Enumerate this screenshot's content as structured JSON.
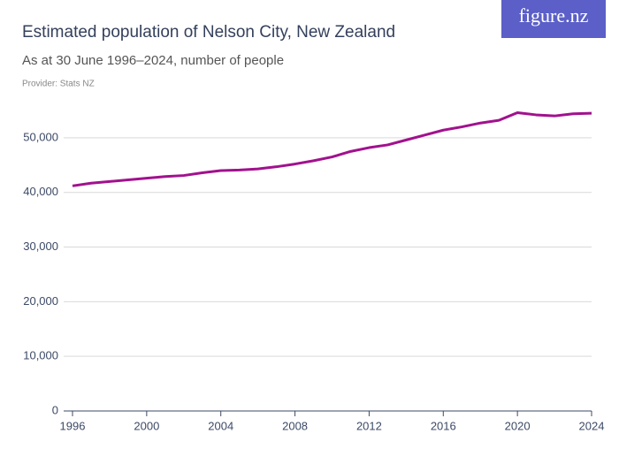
{
  "brand": "figure.nz",
  "chart_data": {
    "type": "line",
    "title": "Estimated population of Nelson City, New Zealand",
    "subtitle": "As at 30 June 1996–2024, number of people",
    "source": "Provider: Stats NZ",
    "x": [
      1996,
      1997,
      1998,
      1999,
      2000,
      2001,
      2002,
      2003,
      2004,
      2005,
      2006,
      2007,
      2008,
      2009,
      2010,
      2011,
      2012,
      2013,
      2014,
      2015,
      2016,
      2017,
      2018,
      2019,
      2020,
      2021,
      2022,
      2023,
      2024
    ],
    "series": [
      {
        "name": "Nelson City",
        "color": "#a2118e",
        "values": [
          41200,
          41700,
          42000,
          42300,
          42600,
          42900,
          43100,
          43600,
          44000,
          44100,
          44300,
          44700,
          45200,
          45800,
          46500,
          47500,
          48200,
          48700,
          49600,
          50500,
          51400,
          52000,
          52700,
          53200,
          54600,
          54200,
          54000,
          54400,
          54500
        ]
      }
    ],
    "xlim": [
      1996,
      2024
    ],
    "xticks": [
      1996,
      2000,
      2004,
      2008,
      2012,
      2016,
      2020,
      2024
    ],
    "ylim": [
      0,
      55000
    ],
    "yticks": [
      0,
      {
        "value": 10000,
        "label": "10,000"
      },
      {
        "value": 20000,
        "label": "20,000"
      },
      {
        "value": 30000,
        "label": "30,000"
      },
      {
        "value": 40000,
        "label": "40,000"
      },
      {
        "value": 50000,
        "label": "50,000"
      }
    ],
    "grid": true
  }
}
